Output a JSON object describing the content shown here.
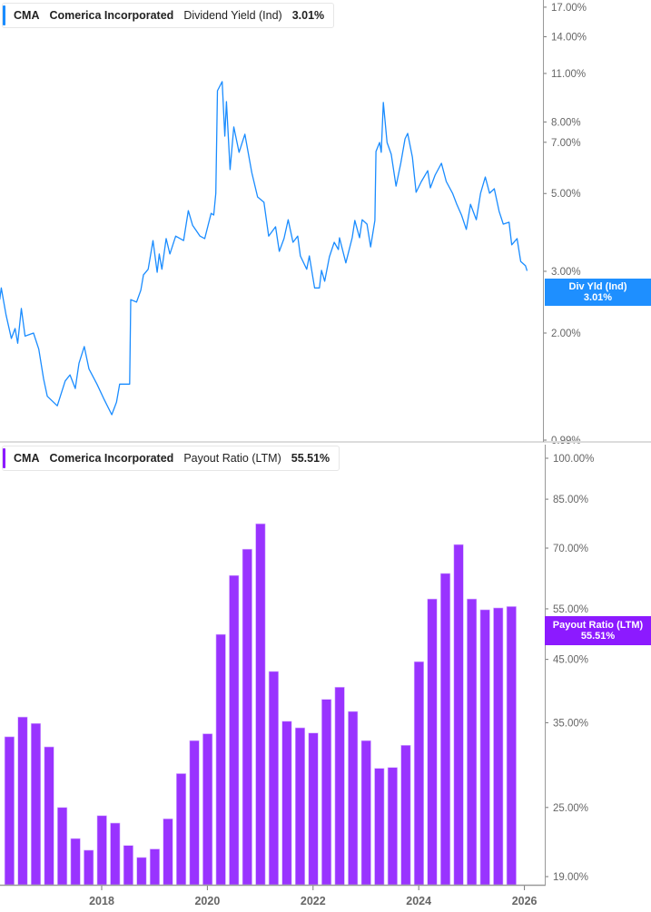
{
  "colors": {
    "dividend_yield": "#1a8cff",
    "payout_ratio": "#9933ff",
    "payout_badge": "#8c1aff",
    "axis": "#999999"
  },
  "top_legend": {
    "ticker": "CMA",
    "company": "Comerica Incorporated",
    "metric": "Dividend Yield (Ind)",
    "value": "3.01%"
  },
  "bottom_legend": {
    "ticker": "CMA",
    "company": "Comerica Incorporated",
    "metric": "Payout Ratio (LTM)",
    "value": "55.51%"
  },
  "top_badge": {
    "label": "Div Yld (Ind)",
    "value": "3.01%"
  },
  "bottom_badge": {
    "label": "Payout Ratio (LTM)",
    "value": "55.51%"
  },
  "chart_data": [
    {
      "type": "line",
      "title": "",
      "series": [
        {
          "name": "Dividend Yield (Ind)"
        }
      ],
      "yscale": "log",
      "ylim": [
        0.99,
        17
      ],
      "xlim": [
        2016.07,
        2026.4
      ],
      "grid": false,
      "y_ticks": [
        {
          "value": 17,
          "label": "17.00%"
        },
        {
          "value": 14,
          "label": "14.00%"
        },
        {
          "value": 11,
          "label": "11.00%"
        },
        {
          "value": 8,
          "label": "8.00%"
        },
        {
          "value": 7,
          "label": "7.00%"
        },
        {
          "value": 5,
          "label": "5.00%"
        },
        {
          "value": 3,
          "label": "3.00%"
        },
        {
          "value": 2,
          "label": "2.00%"
        },
        {
          "value": 0.99,
          "label": "0.99%"
        }
      ],
      "x": [
        2016.07,
        2016.1,
        2016.19,
        2016.29,
        2016.36,
        2016.41,
        2016.48,
        2016.55,
        2016.71,
        2016.81,
        2016.9,
        2016.97,
        2017.16,
        2017.31,
        2017.4,
        2017.5,
        2017.57,
        2017.67,
        2017.76,
        2017.91,
        2018.05,
        2018.19,
        2018.28,
        2018.34,
        2018.53,
        2018.55,
        2018.66,
        2018.74,
        2018.79,
        2018.88,
        2018.97,
        2019.05,
        2019.09,
        2019.14,
        2019.22,
        2019.29,
        2019.4,
        2019.55,
        2019.64,
        2019.72,
        2019.86,
        2019.95,
        2020.07,
        2020.12,
        2020.16,
        2020.19,
        2020.28,
        2020.33,
        2020.36,
        2020.43,
        2020.5,
        2020.6,
        2020.71,
        2020.84,
        2020.95,
        2021.07,
        2021.16,
        2021.29,
        2021.36,
        2021.45,
        2021.53,
        2021.62,
        2021.71,
        2021.76,
        2021.88,
        2021.93,
        2022.03,
        2022.12,
        2022.16,
        2022.22,
        2022.31,
        2022.4,
        2022.48,
        2022.5,
        2022.62,
        2022.74,
        2022.79,
        2022.88,
        2022.93,
        2023.02,
        2023.09,
        2023.17,
        2023.19,
        2023.26,
        2023.29,
        2023.33,
        2023.4,
        2023.48,
        2023.57,
        2023.66,
        2023.74,
        2023.79,
        2023.88,
        2023.95,
        2024.05,
        2024.17,
        2024.22,
        2024.31,
        2024.43,
        2024.52,
        2024.64,
        2024.72,
        2024.81,
        2024.9,
        2024.98,
        2025.09,
        2025.17,
        2025.26,
        2025.34,
        2025.43,
        2025.52,
        2025.6,
        2025.71,
        2025.76,
        2025.86,
        2025.93,
        2026.02,
        2026.05
      ],
      "y": [
        2.49,
        2.69,
        2.25,
        1.93,
        2.06,
        1.87,
        2.35,
        1.96,
        2.0,
        1.8,
        1.48,
        1.32,
        1.24,
        1.46,
        1.52,
        1.39,
        1.64,
        1.83,
        1.58,
        1.43,
        1.29,
        1.17,
        1.27,
        1.43,
        1.43,
        2.49,
        2.45,
        2.65,
        2.93,
        3.04,
        3.67,
        2.98,
        3.36,
        3.04,
        3.72,
        3.36,
        3.78,
        3.67,
        4.47,
        4.06,
        3.78,
        3.72,
        4.39,
        4.34,
        5.01,
        9.82,
        10.43,
        7.29,
        9.14,
        5.85,
        7.74,
        6.55,
        7.38,
        5.74,
        4.89,
        4.72,
        3.78,
        4.02,
        3.42,
        3.72,
        4.21,
        3.63,
        3.78,
        3.32,
        3.04,
        3.32,
        2.69,
        2.69,
        3.02,
        2.81,
        3.3,
        3.63,
        3.46,
        3.74,
        3.17,
        3.74,
        4.19,
        3.74,
        4.21,
        4.09,
        3.52,
        4.19,
        6.59,
        6.99,
        6.55,
        9.09,
        6.99,
        6.47,
        5.25,
        6.1,
        7.16,
        7.42,
        6.35,
        5.04,
        5.41,
        5.81,
        5.19,
        5.64,
        6.1,
        5.41,
        5.01,
        4.66,
        4.34,
        3.95,
        4.66,
        4.21,
        5.01,
        5.57,
        5.01,
        5.16,
        4.45,
        4.09,
        4.14,
        3.57,
        3.72,
        3.2,
        3.11,
        3.01
      ]
    },
    {
      "type": "bar",
      "title": "",
      "series": [
        {
          "name": "Payout Ratio (LTM)"
        }
      ],
      "yscale": "log",
      "ylim": [
        19,
        100
      ],
      "grid": false,
      "y_ticks": [
        {
          "value": 100,
          "label": "100.00%"
        },
        {
          "value": 85,
          "label": "85.00%"
        },
        {
          "value": 70,
          "label": "70.00%"
        },
        {
          "value": 55,
          "label": "55.00%"
        },
        {
          "value": 45,
          "label": "45.00%"
        },
        {
          "value": 35,
          "label": "35.00%"
        },
        {
          "value": 25,
          "label": "25.00%"
        },
        {
          "value": 19,
          "label": "19.00%"
        }
      ],
      "x_ticks": [
        {
          "value": 2018,
          "label": "2018"
        },
        {
          "value": 2020,
          "label": "2020"
        },
        {
          "value": 2022,
          "label": "2022"
        },
        {
          "value": 2024,
          "label": "2024"
        },
        {
          "value": 2026,
          "label": "2026"
        }
      ],
      "categories": [
        "2016 Q2",
        "2016 Q3",
        "2016 Q4",
        "2017 Q1",
        "2017 Q2",
        "2017 Q3",
        "2017 Q4",
        "2018 Q1",
        "2018 Q2",
        "2018 Q3",
        "2018 Q4",
        "2019 Q1",
        "2019 Q2",
        "2019 Q3",
        "2019 Q4",
        "2020 Q1",
        "2020 Q2",
        "2020 Q3",
        "2020 Q4",
        "2021 Q1",
        "2021 Q2",
        "2021 Q3",
        "2021 Q4",
        "2022 Q1",
        "2022 Q2",
        "2022 Q3",
        "2022 Q4",
        "2023 Q1",
        "2023 Q2",
        "2023 Q3",
        "2023 Q4",
        "2024 Q1",
        "2024 Q2",
        "2024 Q3",
        "2024 Q4",
        "2025 Q1",
        "2025 Q2",
        "2025 Q3",
        "2025 Q4"
      ],
      "values": [
        33.1,
        35.8,
        34.9,
        31.8,
        25.0,
        22.1,
        21.1,
        24.2,
        23.5,
        21.5,
        20.5,
        21.2,
        23.9,
        28.6,
        32.6,
        33.5,
        49.7,
        62.8,
        69.7,
        77.1,
        42.9,
        35.2,
        34.3,
        33.6,
        38.4,
        40.3,
        36.6,
        32.6,
        29.2,
        29.3,
        32.0,
        44.6,
        57.2,
        63.3,
        71.0,
        57.2,
        54.8,
        55.2,
        55.51
      ]
    }
  ]
}
